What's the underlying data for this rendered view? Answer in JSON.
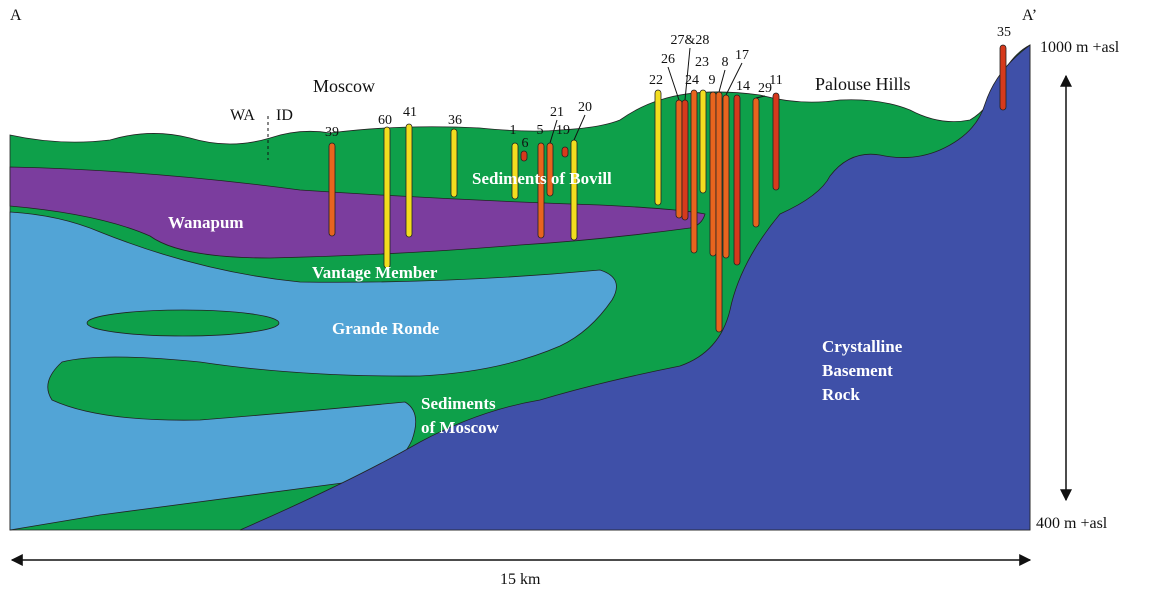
{
  "section_ends": {
    "left": "A",
    "right": "A’"
  },
  "places": {
    "town": "Moscow",
    "hills": "Palouse Hills"
  },
  "border": {
    "west": "WA",
    "east": "ID"
  },
  "units": {
    "bovill": "Sediments of Bovill",
    "wanapum": "Wanapum",
    "vantage": "Vantage Member",
    "grande_ronde": "Grande Ronde",
    "moscow_sediments": [
      "Sediments",
      "of Moscow"
    ],
    "basement": [
      "Crystalline",
      "Basement",
      "Rock"
    ]
  },
  "wells": [
    "39",
    "60",
    "41",
    "36",
    "1",
    "6",
    "5",
    "21",
    "19",
    "20",
    "22",
    "26",
    "27&28",
    "24",
    "23",
    "9",
    "8",
    "17",
    "14",
    "29",
    "11",
    "35"
  ],
  "scale": {
    "top": "1000 m +asl",
    "bottom": "400 m +asl",
    "horizontal": "15 km"
  }
}
